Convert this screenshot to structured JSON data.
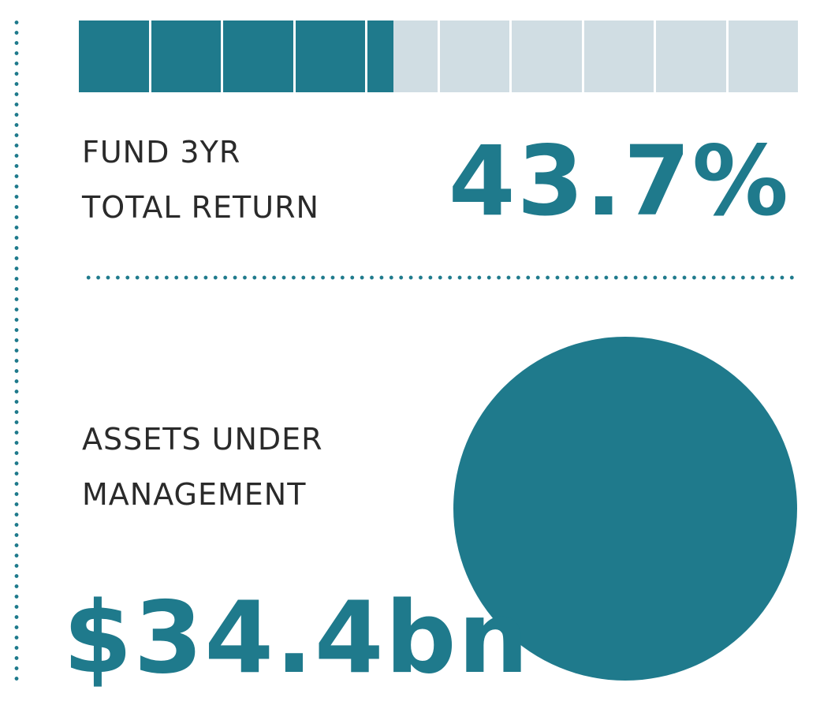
{
  "colors": {
    "accent": "#1f7a8c",
    "track": "#d0dde3",
    "text": "#2a2a2a"
  },
  "fund_return": {
    "label_line1": "FUND 3YR",
    "label_line2": "TOTAL RETURN",
    "value": "43.7%",
    "bar_fill_percent": 43.7,
    "bar_segments": 10
  },
  "assets": {
    "label_line1": "ASSETS UNDER",
    "label_line2": "MANAGEMENT",
    "value": "$34.4bn"
  }
}
